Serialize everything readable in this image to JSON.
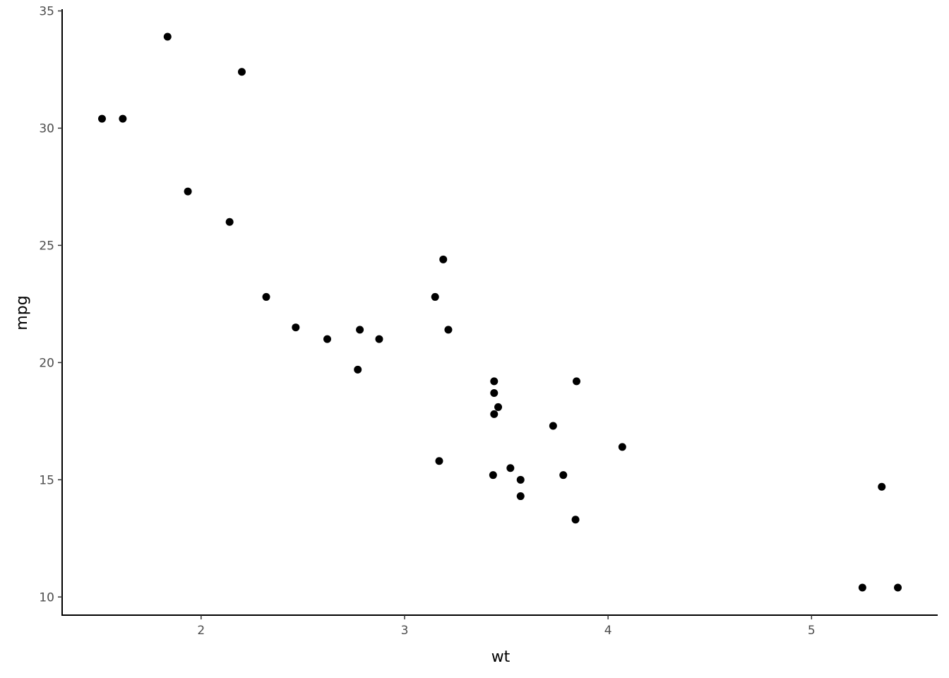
{
  "chart_data": {
    "type": "scatter",
    "title": "",
    "xlabel": "wt",
    "ylabel": "mpg",
    "xlim": [
      1.317,
      5.62
    ],
    "ylim": [
      9.225,
      35.075
    ],
    "xticks": [
      2,
      3,
      4,
      5
    ],
    "yticks": [
      10,
      15,
      20,
      25,
      30,
      35
    ],
    "grid": false,
    "point_color": "#000000",
    "points": [
      {
        "x": 2.62,
        "y": 21.0
      },
      {
        "x": 2.875,
        "y": 21.0
      },
      {
        "x": 2.32,
        "y": 22.8
      },
      {
        "x": 3.215,
        "y": 21.4
      },
      {
        "x": 3.44,
        "y": 18.7
      },
      {
        "x": 3.46,
        "y": 18.1
      },
      {
        "x": 3.57,
        "y": 14.3
      },
      {
        "x": 3.19,
        "y": 24.4
      },
      {
        "x": 3.15,
        "y": 22.8
      },
      {
        "x": 3.44,
        "y": 19.2
      },
      {
        "x": 3.44,
        "y": 17.8
      },
      {
        "x": 4.07,
        "y": 16.4
      },
      {
        "x": 3.73,
        "y": 17.3
      },
      {
        "x": 3.78,
        "y": 15.2
      },
      {
        "x": 5.25,
        "y": 10.4
      },
      {
        "x": 5.424,
        "y": 10.4
      },
      {
        "x": 5.345,
        "y": 14.7
      },
      {
        "x": 2.2,
        "y": 32.4
      },
      {
        "x": 1.615,
        "y": 30.4
      },
      {
        "x": 1.835,
        "y": 33.9
      },
      {
        "x": 2.465,
        "y": 21.5
      },
      {
        "x": 3.52,
        "y": 15.5
      },
      {
        "x": 3.435,
        "y": 15.2
      },
      {
        "x": 3.84,
        "y": 13.3
      },
      {
        "x": 3.845,
        "y": 19.2
      },
      {
        "x": 1.935,
        "y": 27.3
      },
      {
        "x": 2.14,
        "y": 26.0
      },
      {
        "x": 1.513,
        "y": 30.4
      },
      {
        "x": 3.17,
        "y": 15.8
      },
      {
        "x": 2.77,
        "y": 19.7
      },
      {
        "x": 3.57,
        "y": 15.0
      },
      {
        "x": 2.78,
        "y": 21.4
      }
    ]
  }
}
